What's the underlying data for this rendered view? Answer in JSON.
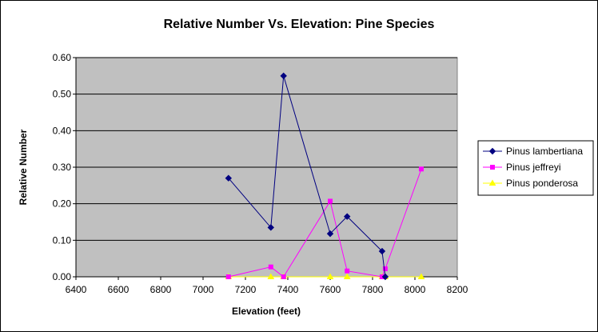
{
  "chart_data": {
    "type": "line",
    "title": "Relative Number Vs. Elevation: Pine Species",
    "xlabel": "Elevation (feet)",
    "ylabel": "Relative Number",
    "xlim": [
      6400,
      8200
    ],
    "ylim": [
      0,
      0.6
    ],
    "x_ticks": [
      "6400",
      "6600",
      "6800",
      "7000",
      "7200",
      "7400",
      "7600",
      "7800",
      "8000",
      "8200"
    ],
    "y_ticks": [
      "0.00",
      "0.10",
      "0.20",
      "0.30",
      "0.40",
      "0.50",
      "0.60"
    ],
    "grid": "horizontal",
    "plot_background": "#c0c0c0",
    "legend_position": "right",
    "series": [
      {
        "name": "Pinus lambertiana",
        "color": "#000080",
        "marker": "diamond",
        "points": [
          [
            7120,
            0.27
          ],
          [
            7320,
            0.135
          ],
          [
            7380,
            0.55
          ],
          [
            7600,
            0.118
          ],
          [
            7680,
            0.165
          ],
          [
            7845,
            0.07
          ],
          [
            7860,
            0.0
          ]
        ]
      },
      {
        "name": "Pinus jeffreyi",
        "color": "#ff00ff",
        "marker": "square",
        "points": [
          [
            7120,
            0.0
          ],
          [
            7320,
            0.027
          ],
          [
            7380,
            0.0
          ],
          [
            7600,
            0.207
          ],
          [
            7680,
            0.016
          ],
          [
            7845,
            0.0
          ],
          [
            7860,
            0.022
          ],
          [
            8030,
            0.295
          ]
        ]
      },
      {
        "name": "Pinus ponderosa",
        "color": "#ffff00",
        "marker": "triangle",
        "points": [
          [
            7120,
            0.0
          ],
          [
            7320,
            0.0
          ],
          [
            7380,
            0.0
          ],
          [
            7600,
            0.0
          ],
          [
            7680,
            0.0
          ],
          [
            7845,
            0.0
          ],
          [
            7860,
            0.0
          ],
          [
            8030,
            0.0
          ]
        ]
      }
    ]
  }
}
